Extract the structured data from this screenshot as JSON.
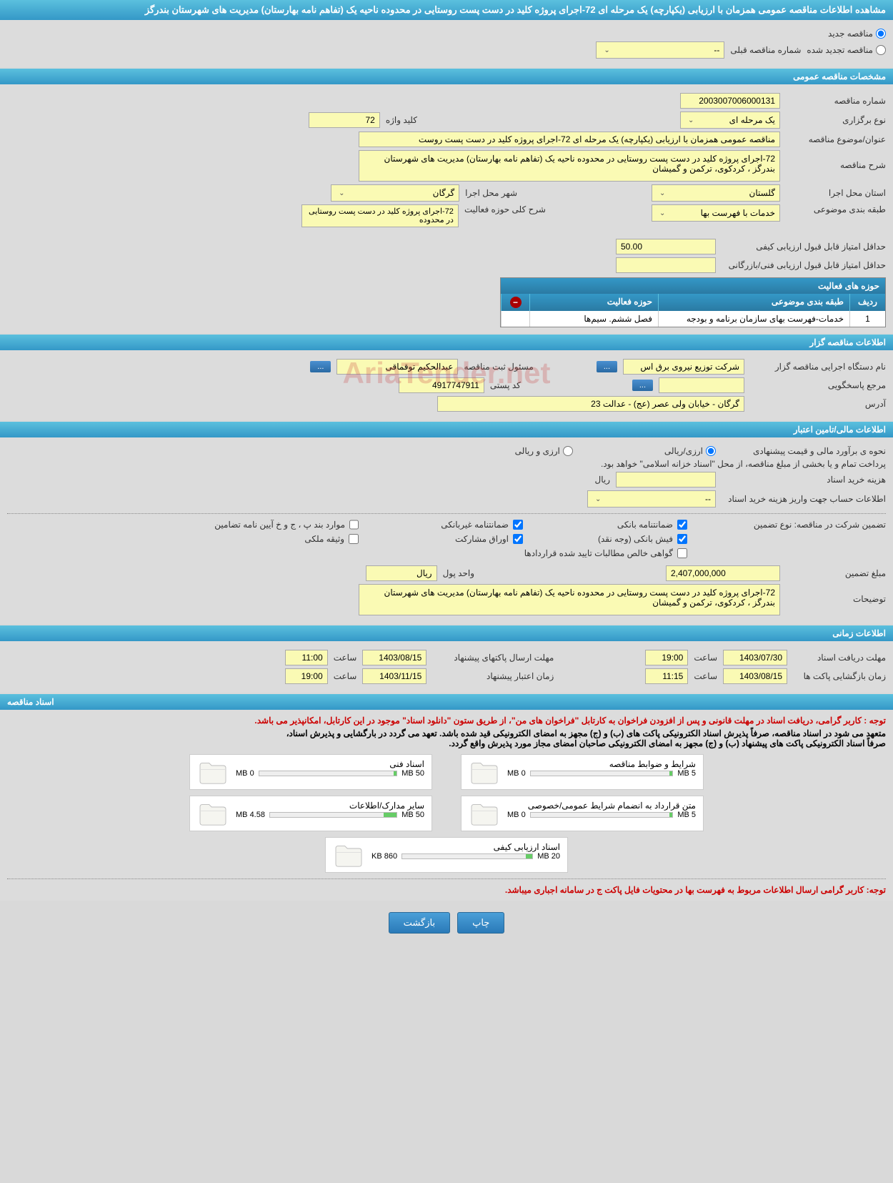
{
  "header": {
    "title": "مشاهده اطلاعات مناقصه عمومی همزمان با ارزیابی (یکپارچه) یک مرحله ای 72-اجرای پروژه کلید در دست پست روستایی در محدوده ناحیه یک (تفاهم نامه بهارستان) مدیریت های شهرستان بندرگز"
  },
  "tender_type": {
    "new": "مناقصه جدید",
    "renewed": "مناقصه تجدید شده",
    "prev_label": "شماره مناقصه قبلی",
    "prev_value": "--"
  },
  "sections": {
    "general": "مشخصات مناقصه عمومی",
    "organizer": "اطلاعات مناقصه گزار",
    "financial": "اطلاعات مالی/تامین اعتبار",
    "timing": "اطلاعات زمانی",
    "documents": "اسناد مناقصه"
  },
  "general": {
    "number_label": "شماره مناقصه",
    "number": "2003007006000131",
    "type_label": "نوع برگزاری",
    "type": "یک مرحله ای",
    "keyword_label": "کلید واژه",
    "keyword": "72",
    "subject_label": "عنوان/موضوع مناقصه",
    "subject": "مناقصه عمومی همزمان با ارزیابی (یکپارچه) یک مرحله ای 72-اجرای پروژه کلید در دست  پست روست",
    "desc_label": "شرح مناقصه",
    "desc": "72-اجرای پروژه کلید در دست  پست روستایی در محدوده ناحیه یک  (تفاهم نامه بهارستان) مدیریت های شهرستان بندرگز ، کردکوی، ترکمن و گمیشان",
    "province_label": "استان محل اجرا",
    "province": "گلستان",
    "city_label": "شهر محل اجرا",
    "city": "گرگان",
    "category_label": "طبقه بندی موضوعی",
    "category": "خدمات با فهرست بها",
    "scope_label": "شرح کلی حوزه فعالیت",
    "scope": "72-اجرای پروژه کلید در دست پست روستایی در محدوده",
    "min_eval_label": "حداقل امتیاز قابل قبول ارزیابی کیفی",
    "min_eval": "50.00",
    "min_tech_label": "حداقل امتیاز قابل قبول ارزیابی فنی/بازرگانی",
    "min_tech": ""
  },
  "activity_table": {
    "title": "حوزه های فعالیت",
    "cols": {
      "idx": "ردیف",
      "cat": "طبقه بندی موضوعی",
      "act": "حوزه فعالیت"
    },
    "rows": [
      {
        "idx": "1",
        "cat": "خدمات-فهرست بهای سازمان برنامه و بودجه",
        "act": "فصل ششم. سیم‌ها"
      }
    ]
  },
  "organizer": {
    "name_label": "نام دستگاه اجرایی مناقصه گزار",
    "name": "شرکت توزیع نیروی برق اس",
    "more_btn": "...",
    "responsible_label": "مسئول ثبت مناقصه",
    "responsible": "عبدالحکیم توقماقی",
    "contact_label": "مرجع پاسخگویی",
    "contact": "",
    "postal_label": "کد پستی",
    "postal": "4917747911",
    "address_label": "آدرس",
    "address": "گرگان - خیابان ولی عصر (عج) - عدالت 23"
  },
  "financial": {
    "method_label": "نحوه ی برآورد مالی و قیمت پیشنهادی",
    "method_rial": "ارزی/ریالی",
    "method_both": "ارزی و ریالی",
    "payment_note": "پرداخت تمام و یا بخشی از مبلغ مناقصه، از محل \"اسناد خزانه اسلامی\" خواهد بود.",
    "doc_cost_label": "هزینه خرید اسناد",
    "doc_cost": "",
    "doc_cost_unit": "ریال",
    "account_label": "اطلاعات حساب جهت واریز هزینه خرید اسناد",
    "account": "--",
    "guarantee_label": "تضمین شرکت در مناقصه:   نوع تضمین",
    "g1": "ضمانتنامه بانکی",
    "g2": "ضمانتنامه غیربانکی",
    "g3": "موارد بند پ ، ج و خ آیین نامه تضامین",
    "g4": "فیش بانکی (وجه نقد)",
    "g5": "اوراق مشارکت",
    "g6": "وثیقه ملکی",
    "g7": "گواهی خالص مطالبات تایید شده قراردادها",
    "amount_label": "مبلغ تضمین",
    "amount": "2,407,000,000",
    "unit_label": "واحد پول",
    "unit": "ریال",
    "notes_label": "توضیحات",
    "notes": "72-اجرای پروژه کلید در دست  پست روستایی در محدوده ناحیه یک  (تفاهم نامه بهارستان) مدیریت های شهرستان بندرگز ، کردکوی، ترکمن و گمیشان"
  },
  "timing": {
    "doc_deadline_label": "مهلت دریافت اسناد",
    "doc_deadline_date": "1403/07/30",
    "doc_deadline_time": "19:00",
    "time_label": "ساعت",
    "envelope_label": "مهلت ارسال پاکتهای پیشنهاد",
    "envelope_date": "1403/08/15",
    "envelope_time": "11:00",
    "open_label": "زمان بازگشایی پاکت ها",
    "open_date": "1403/08/15",
    "open_time": "11:15",
    "validity_label": "زمان اعتبار پیشنهاد",
    "validity_date": "1403/11/15",
    "validity_time": "19:00"
  },
  "documents": {
    "note1": "توجه : کاربر گرامی، دریافت اسناد در مهلت قانونی و پس از افزودن فراخوان به کارتابل \"فراخوان های من\"، از طریق ستون \"دانلود اسناد\" موجود در این کارتابل، امکانپذیر می باشد.",
    "note2a": "متعهد می شود در اسناد مناقصه، صرفاً پذیرش اسناد الکترونیکی پاکت های (ب) و (ج) مجهز به امضای الکترونیکی قید شده باشد. تعهد می گردد در بارگشایی و پذیرش اسناد،",
    "note2b": "صرفاً اسناد الکترونیکی پاکت های پیشنهاد (ب) و (ج) مجهز به امضای الکترونیکی صاحبان امضای مجاز مورد پذیرش واقع گردد.",
    "note3": "توجه: کاربر گرامی ارسال اطلاعات مربوط به فهرست بها در محتویات فایل پاکت ج در سامانه اجباری میباشد.",
    "items": [
      {
        "title": "شرایط و ضوابط مناقصه",
        "used": "0 MB",
        "total": "5 MB",
        "fill_pct": 2
      },
      {
        "title": "اسناد فنی",
        "used": "0 MB",
        "total": "50 MB",
        "fill_pct": 2
      },
      {
        "title": "متن قرارداد به انضمام شرایط عمومی/خصوصی",
        "used": "0 MB",
        "total": "5 MB",
        "fill_pct": 2
      },
      {
        "title": "سایر مدارک/اطلاعات",
        "used": "4.58 MB",
        "total": "50 MB",
        "fill_pct": 10
      },
      {
        "title": "اسناد ارزیابی کیفی",
        "used": "860 KB",
        "total": "20 MB",
        "fill_pct": 5
      }
    ]
  },
  "buttons": {
    "print": "چاپ",
    "back": "بازگشت"
  },
  "watermark": "AriaTender.net",
  "colors": {
    "header_bg": "#3498c7",
    "field_bg": "#fafab4",
    "page_bg": "#d9d9d9",
    "red": "#c00"
  }
}
